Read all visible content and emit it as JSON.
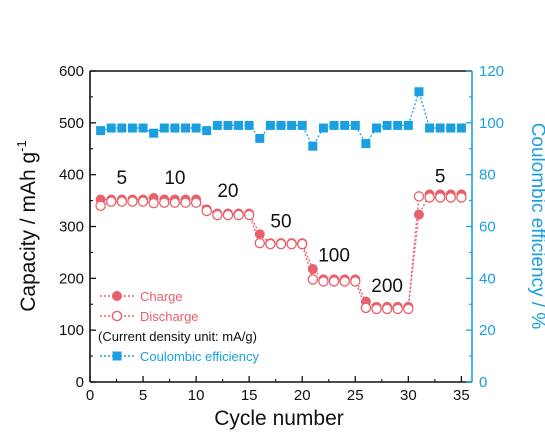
{
  "chart_data": {
    "type": "scatter",
    "xlabel": "Cycle number",
    "ylabel_left": "Capacity / mAh g",
    "ylabel_left_sup": "-1",
    "ylabel_right": "Coulombic efficiency / %",
    "xlim": [
      0,
      36
    ],
    "ylim_left": [
      0,
      600
    ],
    "ylim_right": [
      0,
      120
    ],
    "xticks": [
      0,
      5,
      10,
      15,
      20,
      25,
      30,
      35
    ],
    "yticks_left": [
      0,
      100,
      200,
      300,
      400,
      500,
      600
    ],
    "yticks_right": [
      0,
      20,
      40,
      60,
      80,
      100,
      120
    ],
    "grid": false,
    "legend_position": "lower-left",
    "note": "(Current density unit: mA/g)",
    "rate_labels": [
      {
        "text": "5",
        "x": 3,
        "y": 382
      },
      {
        "text": "10",
        "x": 8,
        "y": 382
      },
      {
        "text": "20",
        "x": 13,
        "y": 357
      },
      {
        "text": "50",
        "x": 18,
        "y": 298
      },
      {
        "text": "100",
        "x": 23,
        "y": 232
      },
      {
        "text": "200",
        "x": 28,
        "y": 174
      },
      {
        "text": "5",
        "x": 33,
        "y": 385
      }
    ],
    "x": [
      1,
      2,
      3,
      4,
      5,
      6,
      7,
      8,
      9,
      10,
      11,
      12,
      13,
      14,
      15,
      16,
      17,
      18,
      19,
      20,
      21,
      22,
      23,
      24,
      25,
      26,
      27,
      28,
      29,
      30,
      31,
      32,
      33,
      34,
      35
    ],
    "series": [
      {
        "name": "Charge",
        "axis": "left",
        "color": "#e8606a",
        "marker": "filled-circle",
        "line": "dotted",
        "values": [
          352,
          352,
          352,
          352,
          352,
          355,
          352,
          352,
          352,
          352,
          333,
          325,
          325,
          325,
          325,
          285,
          268,
          268,
          268,
          268,
          218,
          198,
          198,
          198,
          198,
          155,
          145,
          145,
          145,
          145,
          323,
          362,
          362,
          362,
          362
        ]
      },
      {
        "name": "Discharge",
        "axis": "left",
        "color": "#e8606a",
        "marker": "open-circle",
        "line": "dotted",
        "values": [
          340,
          348,
          348,
          348,
          348,
          345,
          346,
          346,
          346,
          346,
          330,
          322,
          322,
          322,
          322,
          268,
          266,
          266,
          266,
          266,
          198,
          194,
          194,
          194,
          194,
          143,
          141,
          141,
          141,
          141,
          358,
          356,
          356,
          356,
          356
        ]
      },
      {
        "name": "Coulombic efficiency",
        "axis": "right",
        "color": "#1aa0e0",
        "marker": "filled-square",
        "line": "dotted",
        "values": [
          97,
          98,
          98,
          98,
          98,
          96,
          98,
          98,
          98,
          98,
          97,
          99,
          99,
          99,
          99,
          94,
          99,
          99,
          99,
          99,
          91,
          98,
          99,
          99,
          99,
          92,
          98,
          99,
          99,
          99,
          112,
          98,
          98,
          98,
          98
        ]
      }
    ]
  }
}
